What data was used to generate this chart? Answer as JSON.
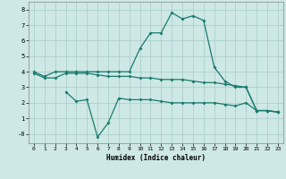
{
  "xlabel": "Humidex (Indice chaleur)",
  "background_color": "#cde8e5",
  "grid_color": "#add0cd",
  "line_color": "#1a7a6e",
  "xlim": [
    -0.5,
    23.5
  ],
  "ylim": [
    -0.6,
    8.5
  ],
  "yticks": [
    0,
    1,
    2,
    3,
    4,
    5,
    6,
    7,
    8
  ],
  "ytick_labels": [
    "-0",
    "1",
    "2",
    "3",
    "4",
    "5",
    "6",
    "7",
    "8"
  ],
  "xticks": [
    0,
    1,
    2,
    3,
    4,
    5,
    6,
    7,
    8,
    9,
    10,
    11,
    12,
    13,
    14,
    15,
    16,
    17,
    18,
    19,
    20,
    21,
    22,
    23
  ],
  "line1_x": [
    0,
    1,
    2,
    3,
    4,
    5,
    6,
    7,
    8,
    9,
    10,
    11,
    12,
    13,
    14,
    15,
    16,
    17,
    18,
    19,
    20,
    21,
    22,
    23
  ],
  "line1_y": [
    4.0,
    3.7,
    4.0,
    4.0,
    4.0,
    4.0,
    4.0,
    4.0,
    4.0,
    4.0,
    5.5,
    6.5,
    6.5,
    7.8,
    7.4,
    7.6,
    7.3,
    4.3,
    3.4,
    3.0,
    3.0,
    1.5,
    1.5,
    1.4
  ],
  "line2_x": [
    0,
    1,
    2,
    3,
    4,
    5,
    6,
    7,
    8,
    9,
    10,
    11,
    12,
    13,
    14,
    15,
    16,
    17,
    18,
    19,
    20,
    21,
    22,
    23
  ],
  "line2_y": [
    3.9,
    3.6,
    3.6,
    3.9,
    3.9,
    3.9,
    3.8,
    3.7,
    3.7,
    3.7,
    3.6,
    3.6,
    3.5,
    3.5,
    3.5,
    3.4,
    3.3,
    3.3,
    3.2,
    3.1,
    3.0,
    1.5,
    1.5,
    1.4
  ],
  "line3_x": [
    3,
    4,
    5,
    6,
    7,
    8,
    9,
    10,
    11,
    12,
    13,
    14,
    15,
    16,
    17,
    18,
    19,
    20,
    21,
    22,
    23
  ],
  "line3_y": [
    2.7,
    2.1,
    2.2,
    -0.2,
    0.7,
    2.3,
    2.2,
    2.2,
    2.2,
    2.1,
    2.0,
    2.0,
    2.0,
    2.0,
    2.0,
    1.9,
    1.8,
    2.0,
    1.5,
    1.5,
    1.4
  ]
}
